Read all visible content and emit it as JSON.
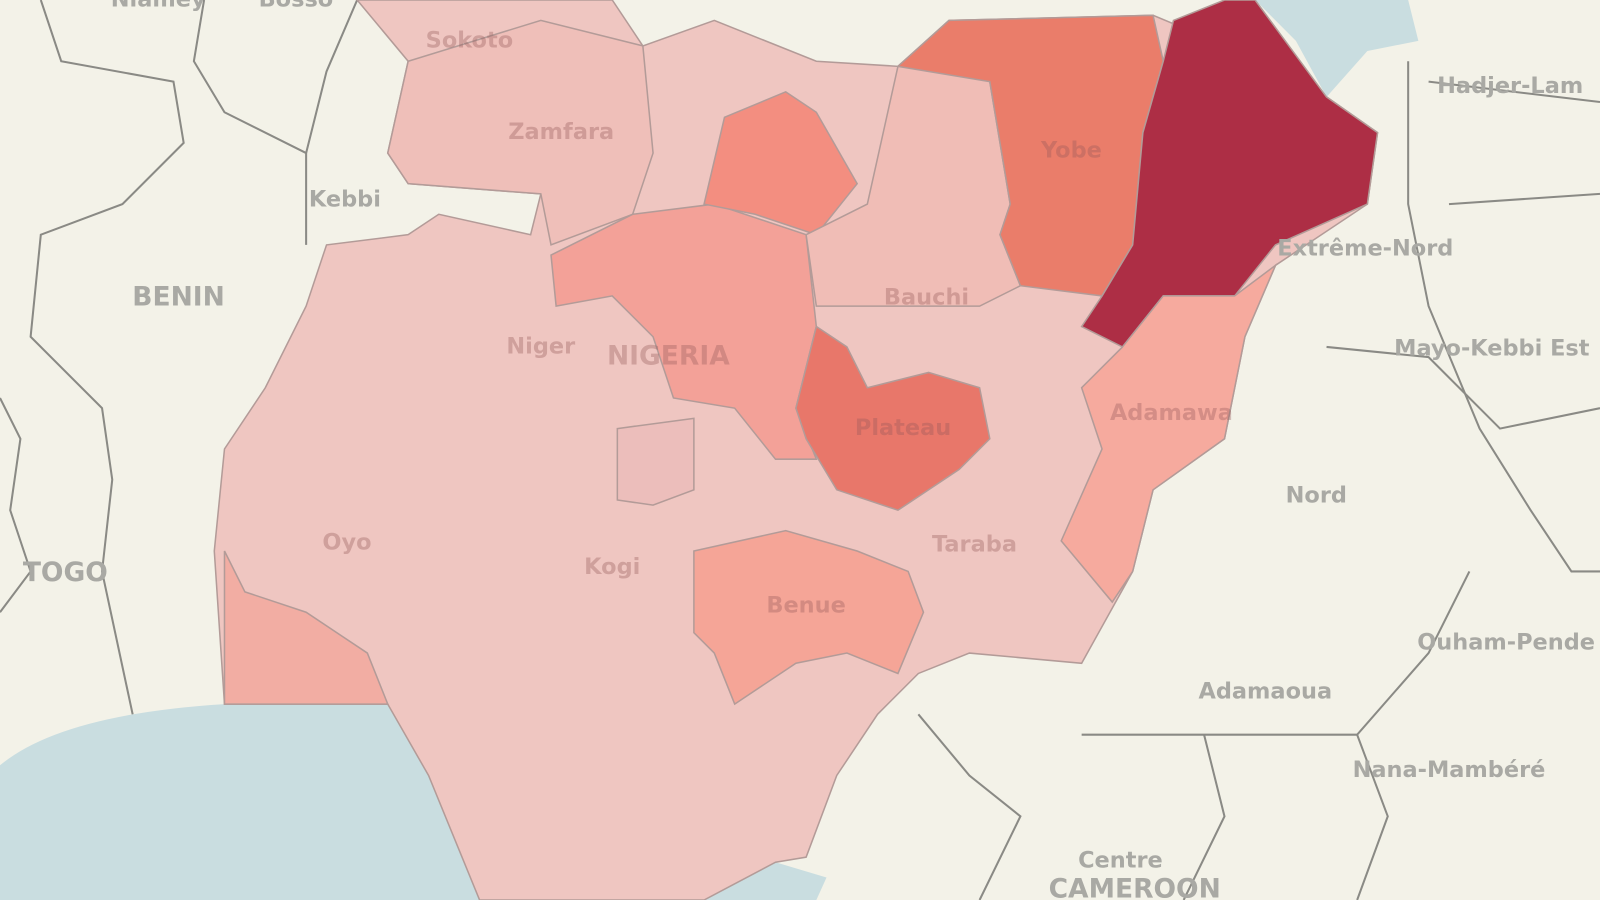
{
  "labels": {
    "niamey": "Niamey",
    "bosso": "Bosso",
    "sokoto": "Sokoto",
    "zamfara": "Zamfara",
    "kebbi": "Kebbi",
    "benin": "BENIN",
    "niger": "Niger",
    "nigeria": "NIGERIA",
    "yobe": "Yobe",
    "bauchi": "Bauchi",
    "plateau": "Plateau",
    "adamawa": "Adamawa",
    "taraba": "Taraba",
    "oyo": "Oyo",
    "kogi": "Kogi",
    "benue": "Benue",
    "togo": "TOGO",
    "hadjer_lamis": "Hadjer-Lam",
    "extreme_nord": "Extrême-Nord",
    "mayo_kebbi_est": "Mayo-Kebbi Est",
    "nord": "Nord",
    "ouham_pende": "Ouham-Pende",
    "adamaoua": "Adamaoua",
    "nana_mambere": "Nana-Mambéré",
    "centre": "Centre",
    "cameroon": "CAMEROON"
  }
}
